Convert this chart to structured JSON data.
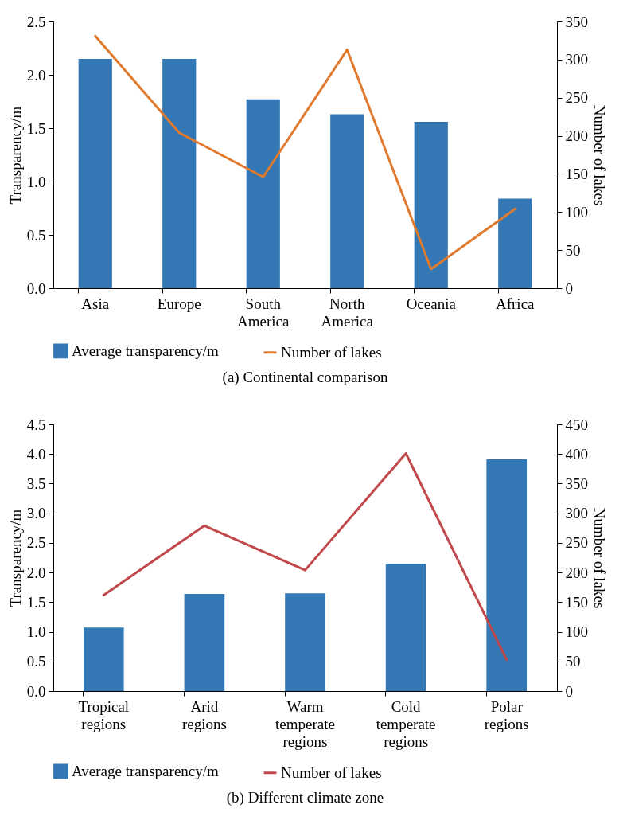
{
  "chart_data": [
    {
      "type": "bar",
      "title": "(a)  Continental comparison",
      "categories": [
        "Asia",
        "Europe",
        "South America",
        "North America",
        "Oceania",
        "Africa"
      ],
      "series": [
        {
          "name": "Average transparency/m",
          "color": "#3378b4",
          "values": [
            2.15,
            2.15,
            1.77,
            1.63,
            1.56,
            0.84
          ]
        },
        {
          "name": "Number of lakes",
          "type": "line",
          "axis": "y2",
          "color": "#e07a2e",
          "values": [
            331,
            204,
            146,
            313,
            25,
            104
          ]
        }
      ],
      "ylabel": "Transparency/m",
      "y2label": "Number of lakes",
      "ylim": [
        0,
        2.5
      ],
      "yticks": [
        {
          "value": 0,
          "label": "0.0"
        },
        0.5,
        {
          "value": 1,
          "label": "1.0"
        },
        1.5,
        {
          "value": 2,
          "label": "2.0"
        },
        2.5
      ],
      "y2lim": [
        0,
        350
      ],
      "y2ticks": [
        0,
        50,
        100,
        150,
        200,
        250,
        300,
        350
      ],
      "legend": "bottom"
    },
    {
      "type": "bar",
      "title": "(b)  Different climate zone",
      "categories": [
        "Tropical regions",
        "Arid regions",
        "Warm temperate regions",
        "Cold temperate regions",
        "Polar regions"
      ],
      "series": [
        {
          "name": "Average transparency/m",
          "color": "#3378b4",
          "values": [
            1.07,
            1.64,
            1.65,
            2.15,
            3.91
          ]
        },
        {
          "name": "Number of lakes",
          "type": "line",
          "axis": "y2",
          "color": "#c0474a",
          "values": [
            162,
            279,
            204,
            401,
            53
          ]
        }
      ],
      "ylabel": "Transparency/m",
      "y2label": "Number of lakes",
      "ylim": [
        0,
        4.5
      ],
      "yticks": [
        {
          "value": 0,
          "label": "0.0"
        },
        0.5,
        {
          "value": 1,
          "label": "1.0"
        },
        1.5,
        {
          "value": 2,
          "label": "2.0"
        },
        2.5,
        {
          "value": 3,
          "label": "3.0"
        },
        3.5,
        {
          "value": 4,
          "label": "4.0"
        },
        4.5
      ],
      "y2lim": [
        0,
        450
      ],
      "y2ticks": [
        0,
        50,
        100,
        150,
        200,
        250,
        300,
        350,
        400,
        450
      ],
      "legend": "bottom"
    }
  ]
}
